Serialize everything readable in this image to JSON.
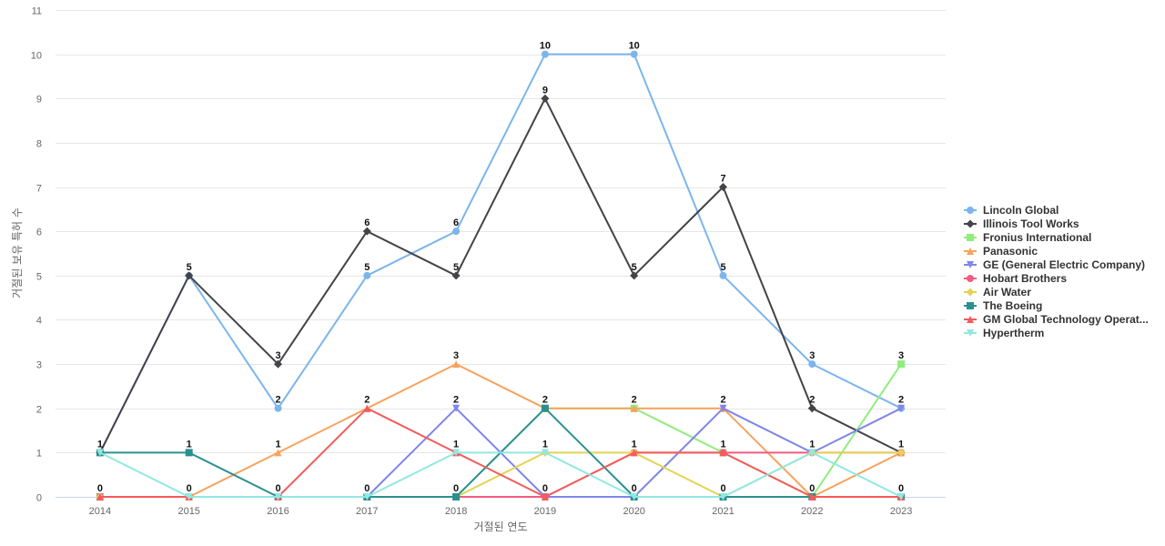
{
  "chart_data": {
    "type": "line",
    "title": "",
    "xlabel": "거절된 연도",
    "ylabel": "거절된 보유 특허 수",
    "x": [
      "2014",
      "2015",
      "2016",
      "2017",
      "2018",
      "2019",
      "2020",
      "2021",
      "2022",
      "2023"
    ],
    "ylim": [
      0,
      11
    ],
    "yticks": [
      "0",
      "1",
      "2",
      "3",
      "4",
      "5",
      "6",
      "7",
      "8",
      "9",
      "10",
      "11"
    ],
    "grid": true,
    "legend_position": "right",
    "data_labels_series": [
      "Lincoln Global",
      "Illinois Tool Works",
      "Fronius International",
      "Panasonic",
      "GE (General Electric Company)",
      "Hobart Brothers"
    ],
    "series": [
      {
        "name": "Lincoln Global",
        "color": "#7cb5ec",
        "marker": "circle",
        "values": [
          1,
          5,
          2,
          5,
          6,
          10,
          10,
          5,
          3,
          2
        ]
      },
      {
        "name": "Illinois Tool Works",
        "color": "#434348",
        "marker": "diamond",
        "values": [
          1,
          5,
          3,
          6,
          5,
          9,
          5,
          7,
          2,
          1
        ]
      },
      {
        "name": "Fronius International",
        "color": "#90ed7d",
        "marker": "square",
        "values": [
          0,
          0,
          0,
          0,
          0,
          2,
          2,
          1,
          0,
          3
        ]
      },
      {
        "name": "Panasonic",
        "color": "#f7a35c",
        "marker": "triangle",
        "values": [
          0,
          0,
          1,
          2,
          3,
          2,
          2,
          2,
          0,
          1
        ]
      },
      {
        "name": "GE (General Electric Company)",
        "color": "#8085e9",
        "marker": "triangle-down",
        "values": [
          0,
          0,
          0,
          0,
          2,
          0,
          0,
          2,
          1,
          2
        ]
      },
      {
        "name": "Hobart Brothers",
        "color": "#f15c80",
        "marker": "circle",
        "values": [
          0,
          0,
          0,
          0,
          0,
          0,
          1,
          1,
          1,
          1
        ]
      },
      {
        "name": "Air Water",
        "color": "#e4d354",
        "marker": "diamond",
        "values": [
          0,
          0,
          0,
          0,
          0,
          1,
          1,
          0,
          1,
          1
        ]
      },
      {
        "name": "The Boeing",
        "color": "#2b908f",
        "marker": "square",
        "values": [
          1,
          1,
          0,
          0,
          0,
          2,
          0,
          0,
          0,
          0
        ]
      },
      {
        "name": "GM Global Technology Operat...",
        "color": "#f45b5b",
        "marker": "triangle",
        "values": [
          0,
          0,
          0,
          2,
          1,
          0,
          1,
          1,
          0,
          0
        ]
      },
      {
        "name": "Hypertherm",
        "color": "#91e8e1",
        "marker": "triangle-down",
        "values": [
          1,
          0,
          0,
          0,
          1,
          1,
          0,
          0,
          1,
          0
        ]
      }
    ],
    "point_labels": [
      {
        "x": "2014",
        "text": "1",
        "y": 1
      },
      {
        "x": "2014",
        "text": "0",
        "y": 0
      },
      {
        "x": "2015",
        "text": "5",
        "y": 5
      },
      {
        "x": "2015",
        "text": "1",
        "y": 1
      },
      {
        "x": "2015",
        "text": "0",
        "y": 0
      },
      {
        "x": "2016",
        "text": "3",
        "y": 3
      },
      {
        "x": "2016",
        "text": "2",
        "y": 2
      },
      {
        "x": "2016",
        "text": "1",
        "y": 1
      },
      {
        "x": "2016",
        "text": "0",
        "y": 0
      },
      {
        "x": "2017",
        "text": "6",
        "y": 6
      },
      {
        "x": "2017",
        "text": "5",
        "y": 5
      },
      {
        "x": "2017",
        "text": "2",
        "y": 2
      },
      {
        "x": "2017",
        "text": "0",
        "y": 0
      },
      {
        "x": "2018",
        "text": "6",
        "y": 6
      },
      {
        "x": "2018",
        "text": "5",
        "y": 5
      },
      {
        "x": "2018",
        "text": "3",
        "y": 3
      },
      {
        "x": "2018",
        "text": "2",
        "y": 2
      },
      {
        "x": "2018",
        "text": "1",
        "y": 1
      },
      {
        "x": "2018",
        "text": "0",
        "y": 0
      },
      {
        "x": "2019",
        "text": "10",
        "y": 10
      },
      {
        "x": "2019",
        "text": "9",
        "y": 9
      },
      {
        "x": "2019",
        "text": "2",
        "y": 2
      },
      {
        "x": "2019",
        "text": "1",
        "y": 1
      },
      {
        "x": "2019",
        "text": "0",
        "y": 0
      },
      {
        "x": "2020",
        "text": "10",
        "y": 10
      },
      {
        "x": "2020",
        "text": "5",
        "y": 5
      },
      {
        "x": "2020",
        "text": "2",
        "y": 2
      },
      {
        "x": "2020",
        "text": "1",
        "y": 1
      },
      {
        "x": "2020",
        "text": "0",
        "y": 0
      },
      {
        "x": "2021",
        "text": "7",
        "y": 7
      },
      {
        "x": "2021",
        "text": "5",
        "y": 5
      },
      {
        "x": "2021",
        "text": "2",
        "y": 2
      },
      {
        "x": "2021",
        "text": "1",
        "y": 1
      },
      {
        "x": "2021",
        "text": "0",
        "y": 0
      },
      {
        "x": "2022",
        "text": "3",
        "y": 3
      },
      {
        "x": "2022",
        "text": "2",
        "y": 2
      },
      {
        "x": "2022",
        "text": "1",
        "y": 1
      },
      {
        "x": "2022",
        "text": "0",
        "y": 0
      },
      {
        "x": "2023",
        "text": "3",
        "y": 3
      },
      {
        "x": "2023",
        "text": "2",
        "y": 2
      },
      {
        "x": "2023",
        "text": "1",
        "y": 1
      },
      {
        "x": "2023",
        "text": "0",
        "y": 0
      }
    ]
  }
}
